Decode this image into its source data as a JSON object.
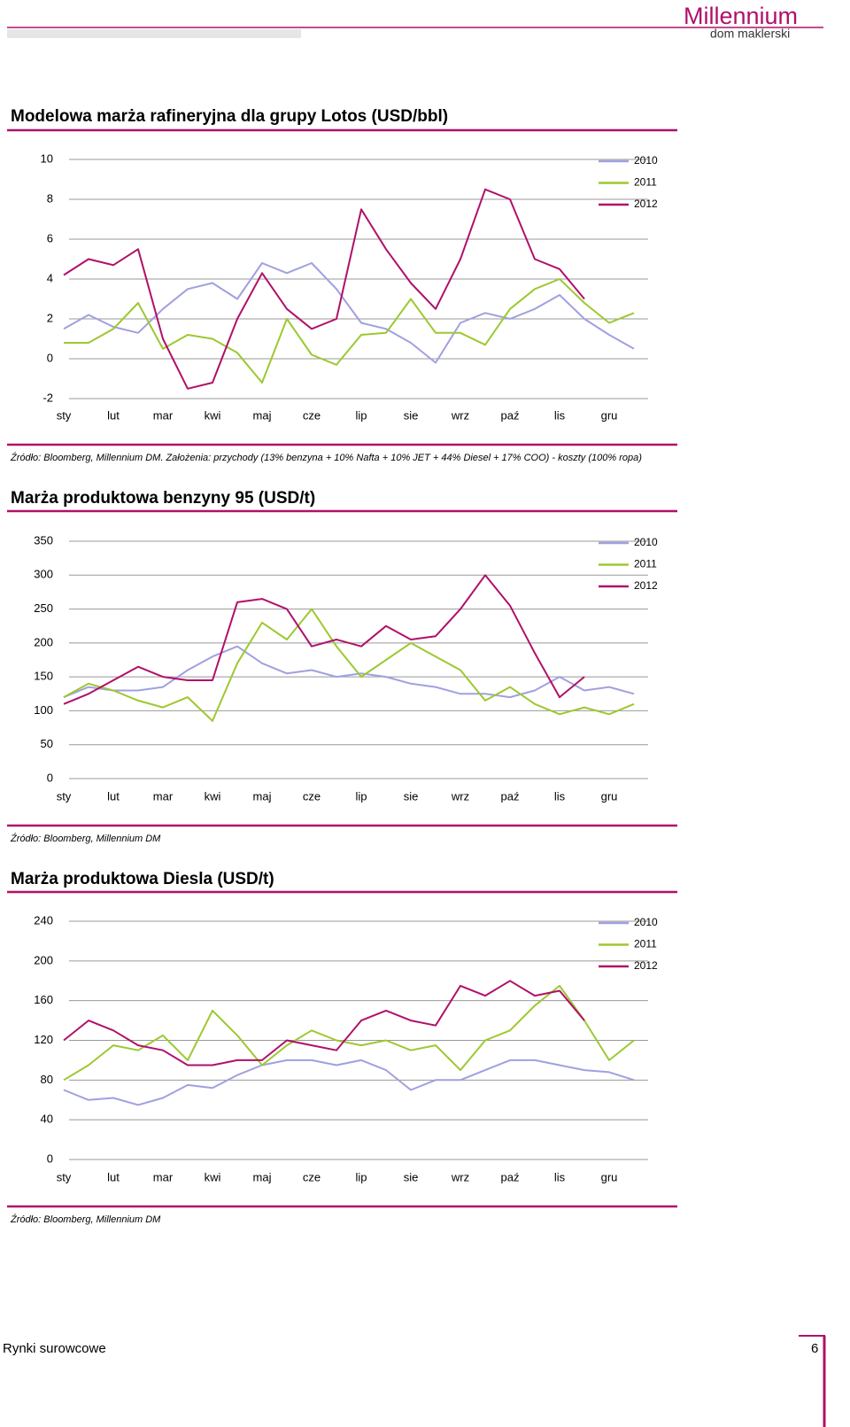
{
  "header": {
    "brand": "Millennium",
    "subbrand": "dom maklerski"
  },
  "chart_data": [
    {
      "type": "line",
      "title": "Modelowa marża rafineryjna dla grupy Lotos (USD/bbl)",
      "source": "Źródło: Bloomberg, Millennium DM. Założenia: przychody (13% benzyna + 10% Nafta + 10% JET + 44% Diesel + 17% COO) - koszty (100% ropa)",
      "categories": [
        "sty",
        null,
        "lut",
        null,
        "mar",
        null,
        "kwi",
        null,
        "maj",
        null,
        "cze",
        null,
        "lip",
        null,
        "sie",
        null,
        "wrz",
        null,
        "paź",
        null,
        "lis",
        null,
        "gru",
        null
      ],
      "ylim": [
        -2,
        10
      ],
      "yticks": [
        -2,
        0,
        2,
        4,
        6,
        8,
        10
      ],
      "grid": true,
      "legend": "top-right",
      "series": [
        {
          "name": "2010",
          "color": "#a0a0e0",
          "values": [
            1.5,
            2.2,
            1.6,
            1.3,
            2.5,
            3.5,
            3.8,
            3.0,
            4.8,
            4.3,
            4.8,
            3.5,
            1.8,
            1.5,
            0.8,
            -0.2,
            1.8,
            2.3,
            2.0,
            2.5,
            3.2,
            2.0,
            1.2,
            0.5
          ]
        },
        {
          "name": "2011",
          "color": "#9dc830",
          "values": [
            0.8,
            0.8,
            1.5,
            2.8,
            0.5,
            1.2,
            1.0,
            0.3,
            -1.2,
            2.0,
            0.2,
            -0.3,
            1.2,
            1.3,
            3.0,
            1.3,
            1.3,
            0.7,
            2.5,
            3.5,
            4.0,
            2.8,
            1.8,
            2.3
          ]
        },
        {
          "name": "2012",
          "color": "#b0106a",
          "values": [
            4.2,
            5.0,
            4.7,
            5.5,
            1.0,
            -1.5,
            -1.2,
            2.0,
            4.3,
            2.5,
            1.5,
            2.0,
            7.5,
            5.5,
            3.8,
            2.5,
            5.0,
            8.5,
            8.0,
            5.0,
            4.5,
            3.0,
            null,
            null
          ]
        }
      ]
    },
    {
      "type": "line",
      "title": "Marża produktowa benzyny 95 (USD/t)",
      "source": "Źródło: Bloomberg, Millennium DM",
      "categories": [
        "sty",
        null,
        "lut",
        null,
        "mar",
        null,
        "kwi",
        null,
        "maj",
        null,
        "cze",
        null,
        "lip",
        null,
        "sie",
        null,
        "wrz",
        null,
        "paź",
        null,
        "lis",
        null,
        "gru",
        null
      ],
      "ylim": [
        0,
        350
      ],
      "yticks": [
        0,
        50,
        100,
        150,
        200,
        250,
        300,
        350
      ],
      "grid": true,
      "legend": "top-right",
      "series": [
        {
          "name": "2010",
          "color": "#a0a0e0",
          "values": [
            120,
            135,
            130,
            130,
            135,
            160,
            180,
            195,
            170,
            155,
            160,
            150,
            155,
            150,
            140,
            135,
            125,
            125,
            120,
            130,
            150,
            130,
            135,
            125
          ]
        },
        {
          "name": "2011",
          "color": "#9dc830",
          "values": [
            120,
            140,
            130,
            115,
            105,
            120,
            85,
            170,
            230,
            205,
            250,
            195,
            150,
            175,
            200,
            180,
            160,
            115,
            135,
            110,
            95,
            105,
            95,
            110
          ]
        },
        {
          "name": "2012",
          "color": "#b0106a",
          "values": [
            110,
            125,
            145,
            165,
            150,
            145,
            145,
            260,
            265,
            250,
            195,
            205,
            195,
            225,
            205,
            210,
            250,
            300,
            255,
            185,
            120,
            150,
            null,
            null
          ]
        }
      ]
    },
    {
      "type": "line",
      "title": "Marża produktowa Diesla (USD/t)",
      "source": "Źródło: Bloomberg, Millennium DM",
      "categories": [
        "sty",
        null,
        "lut",
        null,
        "mar",
        null,
        "kwi",
        null,
        "maj",
        null,
        "cze",
        null,
        "lip",
        null,
        "sie",
        null,
        "wrz",
        null,
        "paź",
        null,
        "lis",
        null,
        "gru",
        null
      ],
      "ylim": [
        0,
        240
      ],
      "yticks": [
        0,
        40,
        80,
        120,
        160,
        200,
        240
      ],
      "grid": true,
      "legend": "top-right",
      "series": [
        {
          "name": "2010",
          "color": "#a0a0e0",
          "values": [
            70,
            60,
            62,
            55,
            62,
            75,
            72,
            85,
            95,
            100,
            100,
            95,
            100,
            90,
            70,
            80,
            80,
            90,
            100,
            100,
            95,
            90,
            88,
            80
          ]
        },
        {
          "name": "2011",
          "color": "#9dc830",
          "values": [
            80,
            95,
            115,
            110,
            125,
            100,
            150,
            125,
            95,
            115,
            130,
            120,
            115,
            120,
            110,
            115,
            90,
            120,
            130,
            155,
            175,
            140,
            100,
            120
          ]
        },
        {
          "name": "2012",
          "color": "#b0106a",
          "values": [
            120,
            140,
            130,
            115,
            110,
            95,
            95,
            100,
            100,
            120,
            115,
            110,
            140,
            150,
            140,
            135,
            175,
            165,
            180,
            165,
            170,
            140,
            null,
            null
          ]
        }
      ]
    }
  ],
  "footer": {
    "section": "Rynki surowcowe",
    "page": "6"
  }
}
